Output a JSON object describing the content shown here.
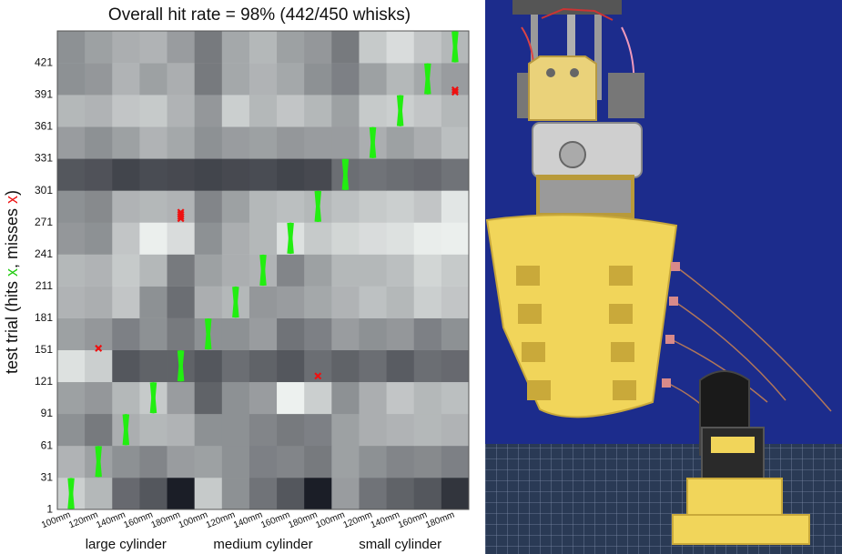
{
  "chart_data": {
    "type": "heatmap",
    "title": "Overall hit rate = 98% (442/450 whisks)",
    "ylabel": {
      "prefix": "test trial (hits ",
      "hit_marker": "x",
      "middle": ", misses ",
      "miss_marker": "x",
      "suffix": ")"
    },
    "x_tick_labels": [
      "100mm",
      "120mm",
      "140mm",
      "160mm",
      "180mm",
      "100mm",
      "120mm",
      "140mm",
      "160mm",
      "180mm",
      "100mm",
      "120mm",
      "140mm",
      "160mm",
      "180mm"
    ],
    "x_groups": [
      "large cylinder",
      "medium cylinder",
      "small cylinder"
    ],
    "y_ticks": [
      1,
      31,
      61,
      91,
      121,
      151,
      181,
      211,
      241,
      271,
      301,
      331,
      361,
      391,
      421
    ],
    "ylim": [
      1,
      450
    ],
    "trials_per_block": 30,
    "cell_values": [
      [
        0.82,
        0.72,
        0.38,
        0.3,
        0.05,
        0.8,
        0.55,
        0.42,
        0.3,
        0.05,
        0.6,
        0.42,
        0.35,
        0.3,
        0.15
      ],
      [
        0.7,
        0.62,
        0.55,
        0.5,
        0.6,
        0.62,
        0.55,
        0.48,
        0.5,
        0.45,
        0.62,
        0.55,
        0.5,
        0.52,
        0.48
      ],
      [
        0.55,
        0.45,
        0.68,
        0.72,
        0.7,
        0.55,
        0.55,
        0.5,
        0.45,
        0.48,
        0.62,
        0.68,
        0.7,
        0.72,
        0.7
      ],
      [
        0.62,
        0.58,
        0.72,
        0.8,
        0.6,
        0.35,
        0.55,
        0.6,
        0.97,
        0.82,
        0.55,
        0.68,
        0.78,
        0.72,
        0.75
      ],
      [
        0.9,
        0.82,
        0.3,
        0.35,
        0.35,
        0.3,
        0.4,
        0.35,
        0.3,
        0.4,
        0.35,
        0.4,
        0.32,
        0.4,
        0.38
      ],
      [
        0.62,
        0.58,
        0.48,
        0.55,
        0.45,
        0.55,
        0.55,
        0.6,
        0.42,
        0.48,
        0.6,
        0.55,
        0.58,
        0.48,
        0.55
      ],
      [
        0.7,
        0.68,
        0.78,
        0.55,
        0.4,
        0.68,
        0.72,
        0.58,
        0.6,
        0.65,
        0.7,
        0.76,
        0.72,
        0.82,
        0.78
      ],
      [
        0.72,
        0.7,
        0.8,
        0.72,
        0.45,
        0.62,
        0.68,
        0.7,
        0.5,
        0.62,
        0.72,
        0.72,
        0.75,
        0.85,
        0.8
      ],
      [
        0.58,
        0.55,
        0.78,
        0.96,
        0.88,
        0.55,
        0.68,
        0.72,
        0.9,
        0.8,
        0.85,
        0.88,
        0.9,
        0.95,
        0.96
      ],
      [
        0.55,
        0.52,
        0.7,
        0.72,
        0.7,
        0.5,
        0.62,
        0.72,
        0.75,
        0.72,
        0.76,
        0.8,
        0.82,
        0.78,
        0.92
      ],
      [
        0.3,
        0.28,
        0.22,
        0.25,
        0.24,
        0.22,
        0.24,
        0.25,
        0.22,
        0.24,
        0.4,
        0.42,
        0.4,
        0.38,
        0.42
      ],
      [
        0.6,
        0.55,
        0.62,
        0.7,
        0.65,
        0.55,
        0.6,
        0.62,
        0.58,
        0.6,
        0.6,
        0.68,
        0.62,
        0.68,
        0.75
      ],
      [
        0.72,
        0.7,
        0.78,
        0.8,
        0.7,
        0.58,
        0.82,
        0.72,
        0.78,
        0.72,
        0.62,
        0.8,
        0.82,
        0.78,
        0.72
      ],
      [
        0.55,
        0.58,
        0.7,
        0.62,
        0.68,
        0.45,
        0.65,
        0.7,
        0.65,
        0.55,
        0.48,
        0.62,
        0.72,
        0.65,
        0.6
      ],
      [
        0.55,
        0.62,
        0.68,
        0.7,
        0.6,
        0.45,
        0.65,
        0.72,
        0.62,
        0.58,
        0.45,
        0.8,
        0.88,
        0.78,
        0.72
      ]
    ],
    "hit_runs": [
      {
        "column": 0,
        "block": 0
      },
      {
        "column": 1,
        "block": 1
      },
      {
        "column": 2,
        "block": 2
      },
      {
        "column": 3,
        "block": 3
      },
      {
        "column": 4,
        "block": 4
      },
      {
        "column": 5,
        "block": 5
      },
      {
        "column": 6,
        "block": 6
      },
      {
        "column": 7,
        "block": 7
      },
      {
        "column": 8,
        "block": 8
      },
      {
        "column": 9,
        "block": 9
      },
      {
        "column": 10,
        "block": 10
      },
      {
        "column": 11,
        "block": 11
      },
      {
        "column": 12,
        "block": 12
      },
      {
        "column": 13,
        "block": 13
      },
      {
        "column": 14,
        "block": 14
      }
    ],
    "misses": [
      {
        "column": 1,
        "trial": 152
      },
      {
        "column": 4,
        "trial": 274
      },
      {
        "column": 4,
        "trial": 276
      },
      {
        "column": 4,
        "trial": 278
      },
      {
        "column": 4,
        "trial": 280
      },
      {
        "column": 9,
        "trial": 126
      },
      {
        "column": 14,
        "trial": 393
      },
      {
        "column": 14,
        "trial": 395
      }
    ],
    "colors": {
      "hit": "#22ee11",
      "miss": "#ee1111",
      "cell_dark": "#10121c",
      "cell_light": "#f4f8f6"
    }
  },
  "photo": {
    "subject": "robot whisker sensor array above cylinder test object",
    "colors": {
      "background": "#1c2c8c",
      "array": "#f1d55a",
      "mat": "#2a3a55",
      "cylinder": "#1a1a1a"
    }
  }
}
